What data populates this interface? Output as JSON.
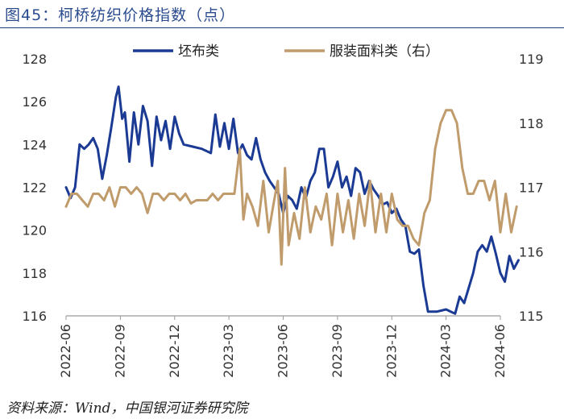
{
  "header": {
    "title": "图45：柯桥纺织价格指数（点）"
  },
  "footer": {
    "source": "资料来源：Wind，中国银河证券研究院"
  },
  "colors": {
    "series1": "#1b3a94",
    "series2": "#c09b6b",
    "axis": "#9a9a9a"
  },
  "chart_data": {
    "type": "line",
    "title": "柯桥纺织价格指数（点）",
    "legend_position": "top-center",
    "x_ticks": [
      "2022-06",
      "2022-09",
      "2022-12",
      "2023-03",
      "2023-06",
      "2023-09",
      "2023-12",
      "2024-03",
      "2024-06"
    ],
    "x_range": [
      0,
      24
    ],
    "y_left": {
      "min": 116,
      "max": 128,
      "ticks": [
        "116",
        "118",
        "120",
        "122",
        "124",
        "126",
        "128"
      ]
    },
    "y_right": {
      "min": 115,
      "max": 119,
      "ticks": [
        "115",
        "116",
        "117",
        "118",
        "119"
      ]
    },
    "series": [
      {
        "name": "坯布类",
        "axis": "left",
        "points": [
          [
            0,
            122
          ],
          [
            0.25,
            121.5
          ],
          [
            0.5,
            122
          ],
          [
            0.75,
            124
          ],
          [
            1,
            123.8
          ],
          [
            1.25,
            124
          ],
          [
            1.5,
            124.3
          ],
          [
            1.75,
            123.8
          ],
          [
            2,
            122.4
          ],
          [
            2.25,
            123.5
          ],
          [
            2.5,
            124.8
          ],
          [
            2.75,
            126.2
          ],
          [
            2.9,
            126.7
          ],
          [
            3.1,
            125.2
          ],
          [
            3.25,
            125.5
          ],
          [
            3.5,
            123.2
          ],
          [
            3.75,
            125.5
          ],
          [
            4,
            124
          ],
          [
            4.25,
            125.8
          ],
          [
            4.5,
            125.1
          ],
          [
            4.75,
            123
          ],
          [
            5,
            125.3
          ],
          [
            5.25,
            124.2
          ],
          [
            5.5,
            125.1
          ],
          [
            5.75,
            123.8
          ],
          [
            6,
            125.3
          ],
          [
            6.25,
            124.5
          ],
          [
            6.5,
            124
          ],
          [
            7,
            123.9
          ],
          [
            7.5,
            123.8
          ],
          [
            8,
            123.6
          ],
          [
            8.25,
            125.4
          ],
          [
            8.5,
            123.9
          ],
          [
            8.75,
            125
          ],
          [
            9,
            123.8
          ],
          [
            9.25,
            125.2
          ],
          [
            9.5,
            123.6
          ],
          [
            9.75,
            124
          ],
          [
            10,
            123.5
          ],
          [
            10.25,
            123.3
          ],
          [
            10.5,
            124.3
          ],
          [
            10.75,
            123.3
          ],
          [
            11,
            122.7
          ],
          [
            11.25,
            122.3
          ],
          [
            11.5,
            122
          ],
          [
            11.75,
            121.7
          ],
          [
            12,
            120.8
          ],
          [
            12.25,
            121.6
          ],
          [
            12.5,
            121.4
          ],
          [
            12.75,
            121
          ],
          [
            13,
            122
          ],
          [
            13.25,
            121.5
          ],
          [
            13.5,
            122.3
          ],
          [
            13.75,
            122.7
          ],
          [
            14,
            123.8
          ],
          [
            14.25,
            123.8
          ],
          [
            14.5,
            122
          ],
          [
            14.75,
            122.5
          ],
          [
            15,
            123.2
          ],
          [
            15.25,
            122
          ],
          [
            15.5,
            122.5
          ],
          [
            15.75,
            121.6
          ],
          [
            16,
            122.9
          ],
          [
            16.25,
            122.7
          ],
          [
            16.5,
            121.7
          ],
          [
            16.75,
            122.3
          ],
          [
            17,
            121.9
          ],
          [
            17.25,
            121.6
          ],
          [
            17.5,
            121.2
          ],
          [
            17.75,
            121.3
          ],
          [
            18,
            120.8
          ],
          [
            18.25,
            121
          ],
          [
            18.5,
            120.5
          ],
          [
            18.75,
            120.2
          ],
          [
            19,
            119
          ],
          [
            19.25,
            118.9
          ],
          [
            19.5,
            119.1
          ],
          [
            19.75,
            117.4
          ],
          [
            20,
            116.2
          ],
          [
            20.5,
            116.2
          ],
          [
            21,
            116.3
          ],
          [
            21.5,
            116.1
          ],
          [
            21.75,
            116.9
          ],
          [
            22,
            116.6
          ],
          [
            22.25,
            117.3
          ],
          [
            22.5,
            118
          ],
          [
            22.75,
            119
          ],
          [
            23,
            119.3
          ],
          [
            23.25,
            119
          ],
          [
            23.5,
            119.7
          ],
          [
            23.75,
            118.9
          ],
          [
            24,
            118
          ],
          [
            24.25,
            117.6
          ],
          [
            24.5,
            118.8
          ],
          [
            24.75,
            118.2
          ],
          [
            25,
            118.6
          ]
        ]
      },
      {
        "name": "服装面料类（右）",
        "axis": "right",
        "points": [
          [
            0,
            116.7
          ],
          [
            0.3,
            116.9
          ],
          [
            0.6,
            116.9
          ],
          [
            0.9,
            116.8
          ],
          [
            1.2,
            116.7
          ],
          [
            1.5,
            116.9
          ],
          [
            1.8,
            116.9
          ],
          [
            2.1,
            116.8
          ],
          [
            2.4,
            117
          ],
          [
            2.7,
            116.7
          ],
          [
            3,
            117
          ],
          [
            3.3,
            117
          ],
          [
            3.6,
            116.9
          ],
          [
            3.9,
            117
          ],
          [
            4.2,
            116.9
          ],
          [
            4.5,
            116.6
          ],
          [
            4.8,
            116.9
          ],
          [
            5.1,
            116.9
          ],
          [
            5.4,
            116.8
          ],
          [
            5.7,
            116.9
          ],
          [
            6,
            116.9
          ],
          [
            6.3,
            116.8
          ],
          [
            6.6,
            116.9
          ],
          [
            6.9,
            116.75
          ],
          [
            7.2,
            116.8
          ],
          [
            7.5,
            116.8
          ],
          [
            7.8,
            116.8
          ],
          [
            8.1,
            116.9
          ],
          [
            8.4,
            116.8
          ],
          [
            8.7,
            116.9
          ],
          [
            9,
            116.9
          ],
          [
            9.3,
            116.9
          ],
          [
            9.6,
            117.6
          ],
          [
            9.8,
            116.5
          ],
          [
            10,
            116.9
          ],
          [
            10.3,
            116.7
          ],
          [
            10.6,
            116.4
          ],
          [
            10.9,
            117.1
          ],
          [
            11.2,
            116.3
          ],
          [
            11.5,
            116.8
          ],
          [
            11.7,
            117.1
          ],
          [
            11.9,
            115.8
          ],
          [
            12.1,
            117.3
          ],
          [
            12.3,
            116.1
          ],
          [
            12.6,
            116.6
          ],
          [
            12.9,
            116.2
          ],
          [
            13.2,
            117
          ],
          [
            13.5,
            116.3
          ],
          [
            13.8,
            116.7
          ],
          [
            14.1,
            116.5
          ],
          [
            14.4,
            116.9
          ],
          [
            14.7,
            116.1
          ],
          [
            15,
            116.9
          ],
          [
            15.3,
            116.3
          ],
          [
            15.6,
            116.8
          ],
          [
            15.9,
            116.2
          ],
          [
            16.2,
            116.9
          ],
          [
            16.5,
            116.4
          ],
          [
            16.8,
            117.1
          ],
          [
            17.1,
            116.3
          ],
          [
            17.4,
            116.9
          ],
          [
            17.7,
            116.3
          ],
          [
            18,
            116.9
          ],
          [
            18.3,
            116.5
          ],
          [
            18.6,
            116.4
          ],
          [
            18.9,
            116.4
          ],
          [
            19.2,
            116.2
          ],
          [
            19.5,
            116.1
          ],
          [
            19.8,
            116.6
          ],
          [
            20.1,
            116.8
          ],
          [
            20.4,
            117.6
          ],
          [
            20.7,
            118
          ],
          [
            21,
            118.2
          ],
          [
            21.3,
            118.2
          ],
          [
            21.6,
            118
          ],
          [
            21.9,
            117.3
          ],
          [
            22.2,
            116.9
          ],
          [
            22.5,
            116.9
          ],
          [
            22.8,
            117.1
          ],
          [
            23.1,
            117.1
          ],
          [
            23.4,
            116.8
          ],
          [
            23.7,
            117.1
          ],
          [
            24,
            116.3
          ],
          [
            24.3,
            116.9
          ],
          [
            24.6,
            116.3
          ],
          [
            24.9,
            116.7
          ]
        ]
      }
    ]
  }
}
